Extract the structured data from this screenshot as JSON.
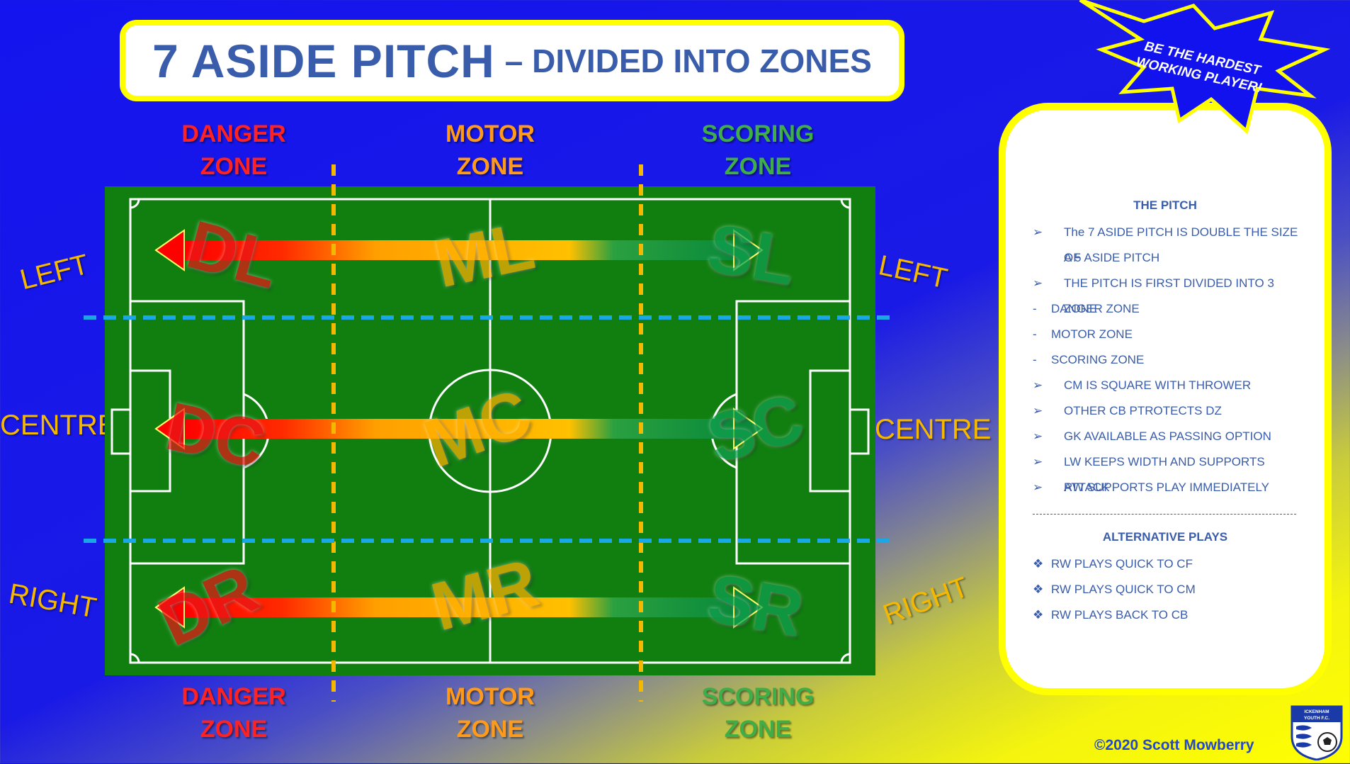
{
  "title": {
    "main": "7 ASIDE PITCH",
    "sub": "– DIVIDED INTO ZONES"
  },
  "zones": {
    "top": [
      {
        "line1": "DANGER",
        "line2": "ZONE"
      },
      {
        "line1": "MOTOR",
        "line2": "ZONE"
      },
      {
        "line1": "SCORING",
        "line2": "ZONE"
      }
    ],
    "bottom": [
      {
        "line1": "DANGER",
        "line2": "ZONE"
      },
      {
        "line1": "MOTOR",
        "line2": "ZONE"
      },
      {
        "line1": "SCORING",
        "line2": "ZONE"
      }
    ]
  },
  "sides": {
    "left_top": "LEFT",
    "left_mid": "CENTRE",
    "left_bottom": "RIGHT",
    "right_top": "LEFT",
    "right_mid": "CENTRE",
    "right_bottom": "RIGHT"
  },
  "pitch_zones": {
    "DL": "DL",
    "ML": "ML",
    "SL": "SL",
    "DC": "DC",
    "MC": "MC",
    "SC": "SC",
    "DR": "DR",
    "MR": "MR",
    "SR": "SR"
  },
  "starburst": {
    "line1": "BE THE HARDEST",
    "line2": "WORKING PLAYER!"
  },
  "info": {
    "heading": "THE PITCH",
    "items": [
      {
        "bullet": "➢",
        "text": "The 7 ASIDE PITCH IS DOUBLE THE SIZE OF"
      },
      {
        "bullet": "",
        "text": "A 5 ASIDE PITCH"
      },
      {
        "bullet": "➢",
        "text": "THE PITCH IS FIRST DIVIDED INTO 3 ZONE"
      },
      {
        "bullet": "-",
        "text": "DANGER ZONE"
      },
      {
        "bullet": "-",
        "text": "MOTOR ZONE"
      },
      {
        "bullet": "-",
        "text": "SCORING ZONE"
      },
      {
        "bullet": "➢",
        "text": "CM IS SQUARE WITH THROWER"
      },
      {
        "bullet": "➢",
        "text": "OTHER CB PTROTECTS DZ"
      },
      {
        "bullet": "➢",
        "text": "GK AVAILABLE AS PASSING OPTION"
      },
      {
        "bullet": "➢",
        "text": "LW KEEPS WIDTH AND SUPPORTS ATTACK"
      },
      {
        "bullet": "➢",
        "text": "RW SUPPORTS PLAY IMMEDIATELY"
      }
    ],
    "alt_heading": "ALTERNATIVE PLAYS",
    "alt_items": [
      {
        "bullet": "❖",
        "text": "RW PLAYS QUICK TO CF"
      },
      {
        "bullet": "❖",
        "text": "RW PLAYS QUICK TO CM"
      },
      {
        "bullet": "❖",
        "text": "RW PLAYS BACK TO CB"
      }
    ]
  },
  "copyright": "©2020 Scott Mowberry",
  "crest": {
    "line1": "ICKENHAM",
    "line2": "YOUTH F.C."
  },
  "colors": {
    "danger": "#ff2222",
    "motor": "#ff9a1a",
    "scoring": "#3fae49",
    "pitch": "#107f10",
    "accent": "#ffff00",
    "text_blue": "#3a5dab"
  }
}
